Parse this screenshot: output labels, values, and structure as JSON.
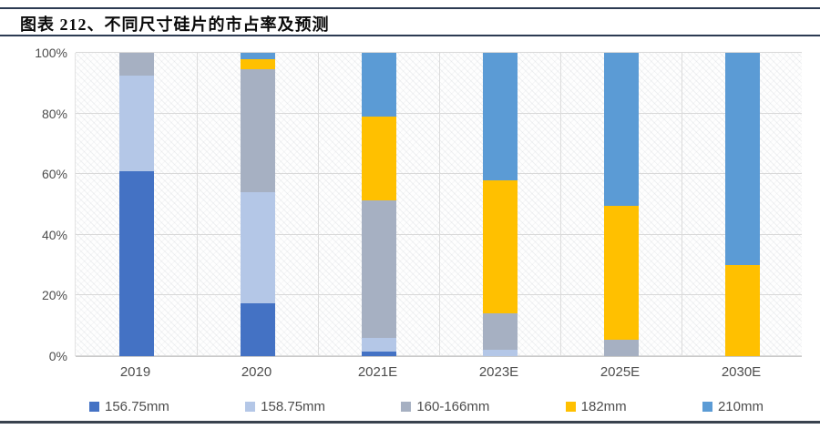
{
  "header": {
    "title": "图表 212、不同尺寸硅片的市占率及预测"
  },
  "chart_data": {
    "type": "bar",
    "stacked": true,
    "unit": "%",
    "title": "图表 212、不同尺寸硅片的市占率及预测",
    "categories": [
      "2019",
      "2020",
      "2021E",
      "2023E",
      "2025E",
      "2030E"
    ],
    "series": [
      {
        "name": "156.75mm",
        "color": "#4472c4",
        "values": [
          61,
          17.5,
          1.5,
          0,
          0,
          0
        ]
      },
      {
        "name": "158.75mm",
        "color": "#b4c7e7",
        "values": [
          31.5,
          36.5,
          4.5,
          2,
          0,
          0
        ]
      },
      {
        "name": "160-166mm",
        "color": "#a6b0c2",
        "values": [
          7.5,
          40.5,
          45.5,
          12,
          5.5,
          0
        ]
      },
      {
        "name": "182mm",
        "color": "#ffc000",
        "values": [
          0,
          3.5,
          27.5,
          44,
          44,
          30
        ]
      },
      {
        "name": "210mm",
        "color": "#5b9bd5",
        "values": [
          0,
          2,
          21,
          42,
          50.5,
          70
        ]
      }
    ],
    "y_ticks": [
      "0%",
      "20%",
      "40%",
      "60%",
      "80%",
      "100%"
    ],
    "ylim": [
      0,
      100
    ],
    "grid": true,
    "legend_position": "bottom"
  }
}
